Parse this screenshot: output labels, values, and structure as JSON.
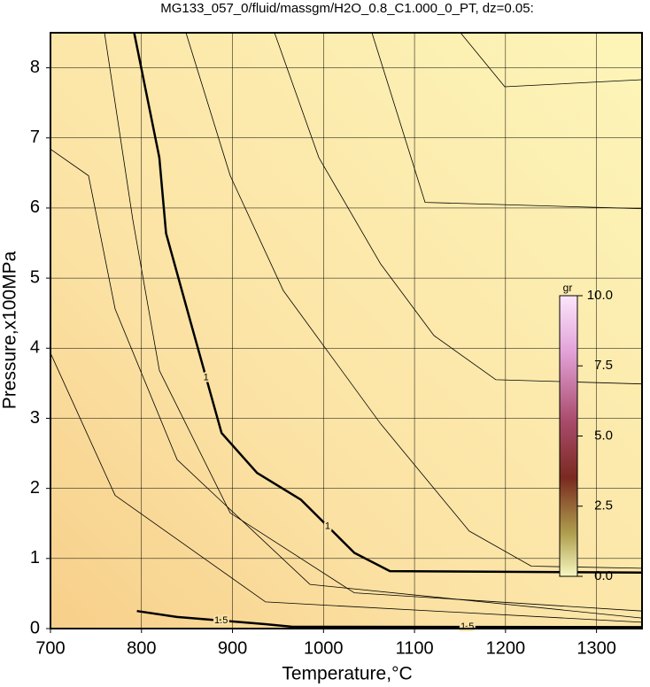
{
  "chart_data": {
    "type": "contour",
    "title": "MG133_057_0/fluid/massgm/H2O_0.8_C1.000_0_PT, dz=0.05:",
    "x_label": "Temperature,°C",
    "y_label": "Pressure,x100MPa",
    "xlim": [
      700,
      1350
    ],
    "xticks": [
      700,
      800,
      900,
      1000,
      1100,
      1200,
      1300
    ],
    "ylim": [
      0,
      8.5
    ],
    "yticks": [
      0,
      1,
      2,
      3,
      4,
      5,
      6,
      7,
      8
    ],
    "grid": true,
    "contours": [
      {
        "level": 1,
        "label": "1",
        "x": [
          792,
          819.6,
          827,
          854,
          888,
          927,
          975,
          1034,
          1073,
          1350
        ],
        "y": [
          8.5,
          6.72,
          5.64,
          4.37,
          2.79,
          2.22,
          1.84,
          1.08,
          0.82,
          0.8
        ]
      },
      {
        "level": 1.5,
        "label": "1.5",
        "x": [
          795,
          839,
          936,
          966,
          1350
        ],
        "y": [
          0.25,
          0.165,
          0.063,
          0.025,
          0.02
        ]
      },
      {
        "level": 0.95,
        "x": [
          848.9,
          897.5,
          955.9,
          1062.9,
          1160.2,
          1228.4,
          1350
        ],
        "y": [
          8.5,
          6.46,
          4.82,
          2.92,
          1.39,
          0.89,
          0.86
        ]
      },
      {
        "level": 0.9,
        "x": [
          946.2,
          994.8,
          1062.9,
          1121.3,
          1189.4,
          1350
        ],
        "y": [
          8.5,
          6.72,
          5.2,
          4.18,
          3.55,
          3.49
        ]
      },
      {
        "level": 0.85,
        "x": [
          1053.2,
          1111.6,
          1350
        ],
        "y": [
          8.5,
          6.08,
          5.99
        ]
      },
      {
        "level": 0.8,
        "x": [
          1150.5,
          1199.2,
          1350
        ],
        "y": [
          8.5,
          7.73,
          7.83
        ]
      },
      {
        "level": 1.05,
        "x": [
          759.4,
          790.5,
          819.7,
          897.5,
          1033.8,
          1350
        ],
        "y": [
          8.5,
          5.83,
          3.68,
          1.65,
          0.51,
          0.25
        ]
      },
      {
        "level": 1.1,
        "x": [
          700,
          741.8,
          771,
          839.1,
          985.1,
          1350
        ],
        "y": [
          6.84,
          6.46,
          4.56,
          2.41,
          0.63,
          0.15
        ]
      },
      {
        "level": 1.2,
        "x": [
          700,
          771,
          936.4,
          1350
        ],
        "y": [
          3.93,
          1.9,
          0.38,
          0.09
        ]
      }
    ],
    "colorbar": {
      "title": "gr",
      "lim": [
        0,
        10
      ],
      "ticks": [
        {
          "value": 0,
          "label": "0.0"
        },
        2.5,
        {
          "value": 5,
          "label": "5.0"
        },
        7.5,
        {
          "value": 10,
          "label": "10.0"
        }
      ]
    }
  }
}
